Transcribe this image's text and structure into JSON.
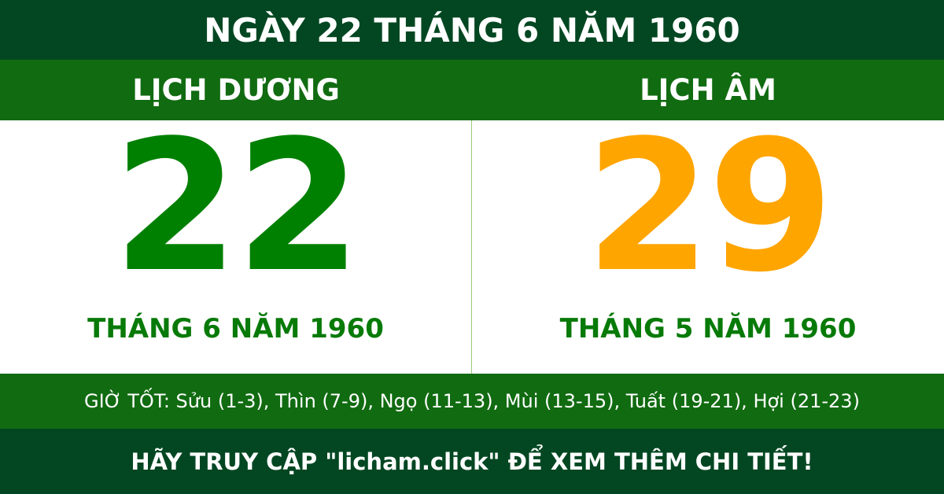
{
  "title": "NGÀY 22 THÁNG 6 NĂM 1960",
  "solar": {
    "heading": "LỊCH DƯƠNG",
    "day": "22",
    "month_year": "THÁNG 6 NĂM 1960"
  },
  "lunar": {
    "heading": "LỊCH ÂM",
    "day": "29",
    "month_year": "THÁNG 5 NĂM 1960"
  },
  "good_hours": "GIỜ TỐT: Sửu (1-3), Thìn (7-9), Ngọ (11-13), Mùi (13-15), Tuất (19-21), Hợi (21-23)",
  "footer": "HÃY TRUY CẬP \"licham.click\" ĐỂ XEM THÊM CHI TIẾT!",
  "colors": {
    "dark_green": "#034722",
    "green": "#116b11",
    "solar_day": "#008000",
    "lunar_day": "#ffa500"
  }
}
